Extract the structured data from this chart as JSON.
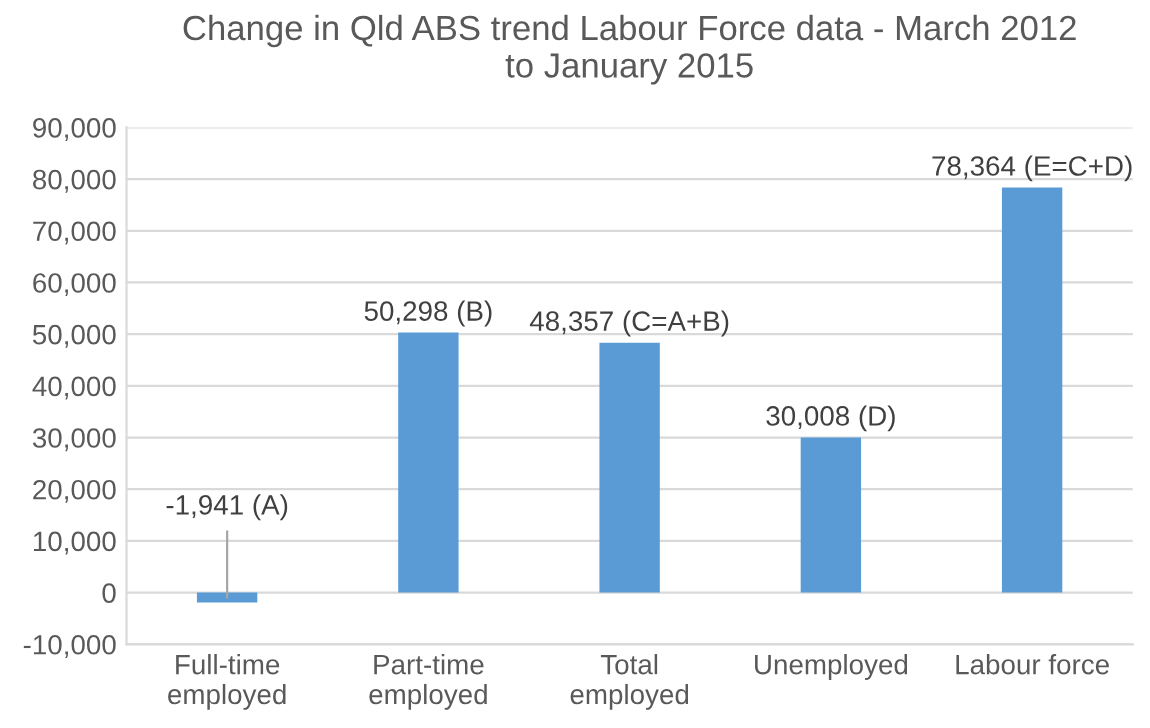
{
  "chart_data": {
    "type": "bar",
    "title": "Change in Qld ABS trend Labour Force data - March 2012\nto January 2015",
    "categories": [
      "Full-time\nemployed",
      "Part-time\nemployed",
      "Total\nemployed",
      "Unemployed",
      "Labour force"
    ],
    "values": [
      -1941,
      50298,
      48357,
      30008,
      78364
    ],
    "color": "#5b9bd5",
    "value_labels": [
      "-1,941 (A)",
      "50,298 (B)",
      "48,357 (C=A+B)",
      "30,008 (D)",
      "78,364 (E=C+D)"
    ],
    "ylim": [
      -10000,
      90000
    ],
    "yticks": [
      {
        "value": -10000,
        "label": "-10,000"
      },
      {
        "value": 0,
        "label": "0"
      },
      {
        "value": 10000,
        "label": "10,000"
      },
      {
        "value": 20000,
        "label": "20,000"
      },
      {
        "value": 30000,
        "label": "30,000"
      },
      {
        "value": 40000,
        "label": "40,000"
      },
      {
        "value": 50000,
        "label": "50,000"
      },
      {
        "value": 60000,
        "label": "60,000"
      },
      {
        "value": 70000,
        "label": "70,000"
      },
      {
        "value": 80000,
        "label": "80,000"
      },
      {
        "value": 90000,
        "label": "90,000"
      }
    ],
    "grid": "y",
    "legend": false
  }
}
